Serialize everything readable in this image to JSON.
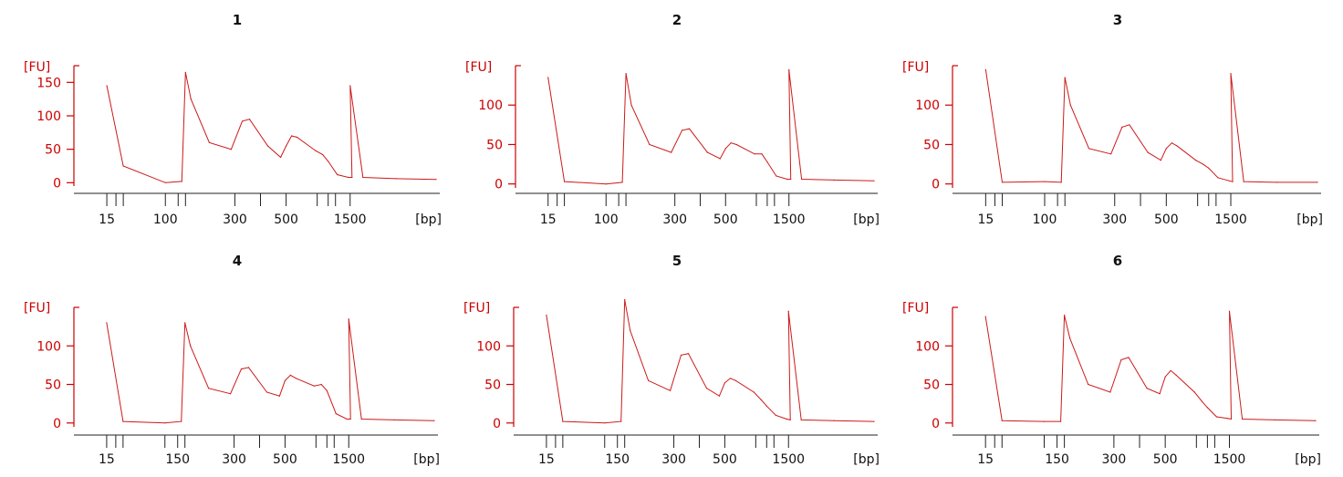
{
  "colors": {
    "axis": "#cc0000",
    "trace": "#cc1a1a",
    "text": "#111111"
  },
  "chart_data": [
    {
      "type": "line",
      "title": "1",
      "ylabel": "[FU]",
      "xlabel": "[bp]",
      "ylim": [
        -5,
        175
      ],
      "yticks": [
        0,
        50,
        100,
        150
      ],
      "xtick_labels": [
        "15",
        "100",
        "300",
        "500",
        "1500"
      ],
      "series": [
        {
          "x": [
            15,
            35,
            100,
            150,
            180,
            200,
            250,
            300,
            330,
            360,
            400,
            450,
            500,
            530,
            560,
            600,
            650,
            700,
            800,
            1000,
            1200,
            1500,
            2000,
            3000,
            5000
          ],
          "y": [
            145,
            25,
            0,
            2,
            165,
            125,
            60,
            50,
            92,
            95,
            55,
            38,
            55,
            70,
            68,
            48,
            42,
            32,
            12,
            8,
            8,
            145,
            8,
            6,
            5
          ]
        }
      ]
    },
    {
      "type": "line",
      "title": "2",
      "ylabel": "[FU]",
      "xlabel": "[bp]",
      "ylim": [
        -5,
        150
      ],
      "yticks": [
        0,
        50,
        100
      ],
      "xtick_labels": [
        "15",
        "100",
        "300",
        "500",
        "1500"
      ],
      "series": [
        {
          "x": [
            15,
            35,
            100,
            150,
            180,
            200,
            250,
            300,
            330,
            360,
            400,
            450,
            500,
            530,
            560,
            600,
            650,
            700,
            800,
            1000,
            1200,
            1500,
            2000,
            3000,
            5000
          ],
          "y": [
            135,
            3,
            0,
            2,
            140,
            100,
            50,
            40,
            68,
            70,
            40,
            32,
            45,
            52,
            50,
            38,
            38,
            28,
            10,
            6,
            6,
            145,
            6,
            5,
            4
          ]
        }
      ]
    },
    {
      "type": "line",
      "title": "3",
      "ylabel": "[FU]",
      "xlabel": "[bp]",
      "ylim": [
        -5,
        150
      ],
      "yticks": [
        0,
        50,
        100
      ],
      "xtick_labels": [
        "15",
        "100",
        "300",
        "500",
        "1500"
      ],
      "series": [
        {
          "x": [
            15,
            35,
            100,
            150,
            180,
            200,
            250,
            300,
            330,
            360,
            400,
            450,
            500,
            530,
            560,
            600,
            650,
            700,
            800,
            1000,
            1200,
            1500,
            2000,
            3000,
            5000
          ],
          "y": [
            145,
            2,
            3,
            2,
            135,
            100,
            45,
            38,
            72,
            75,
            40,
            30,
            45,
            52,
            48,
            30,
            25,
            20,
            8,
            4,
            3,
            140,
            3,
            2,
            2
          ]
        }
      ]
    },
    {
      "type": "line",
      "title": "4",
      "ylabel": "[FU]",
      "xlabel": "[bp]",
      "ylim": [
        -5,
        150
      ],
      "yticks": [
        0,
        50,
        100
      ],
      "xtick_labels": [
        "15",
        "150",
        "300",
        "500",
        "1500"
      ],
      "series": [
        {
          "x": [
            15,
            35,
            100,
            150,
            180,
            200,
            250,
            300,
            330,
            360,
            400,
            450,
            500,
            530,
            560,
            600,
            650,
            700,
            800,
            1000,
            1200,
            1500,
            2000,
            3000,
            5000
          ],
          "y": [
            130,
            2,
            0,
            2,
            130,
            100,
            45,
            38,
            70,
            72,
            40,
            35,
            55,
            62,
            58,
            48,
            50,
            42,
            12,
            5,
            5,
            135,
            5,
            4,
            3
          ]
        }
      ]
    },
    {
      "type": "line",
      "title": "5",
      "ylabel": "[FU]",
      "xlabel": "[bp]",
      "ylim": [
        -5,
        150
      ],
      "yticks": [
        0,
        50,
        100
      ],
      "xtick_labels": [
        "15",
        "150",
        "300",
        "500",
        "1500"
      ],
      "series": [
        {
          "x": [
            15,
            35,
            100,
            150,
            180,
            200,
            250,
            300,
            330,
            360,
            400,
            450,
            500,
            530,
            560,
            600,
            650,
            700,
            800,
            1000,
            1200,
            1500,
            2000,
            3000,
            5000
          ],
          "y": [
            140,
            2,
            0,
            2,
            160,
            120,
            55,
            42,
            88,
            90,
            45,
            35,
            52,
            58,
            55,
            40,
            30,
            22,
            10,
            5,
            4,
            145,
            4,
            3,
            2
          ]
        }
      ]
    },
    {
      "type": "line",
      "title": "6",
      "ylabel": "[FU]",
      "xlabel": "[bp]",
      "ylim": [
        -5,
        150
      ],
      "yticks": [
        0,
        50,
        100
      ],
      "xtick_labels": [
        "15",
        "150",
        "300",
        "500",
        "1500"
      ],
      "series": [
        {
          "x": [
            15,
            35,
            100,
            150,
            180,
            200,
            250,
            300,
            330,
            360,
            400,
            450,
            500,
            530,
            560,
            600,
            650,
            700,
            800,
            1000,
            1200,
            1500,
            2000,
            3000,
            5000
          ],
          "y": [
            138,
            3,
            2,
            2,
            140,
            110,
            50,
            40,
            82,
            85,
            45,
            38,
            60,
            68,
            62,
            40,
            28,
            20,
            8,
            6,
            5,
            145,
            5,
            4,
            3
          ]
        }
      ]
    }
  ]
}
